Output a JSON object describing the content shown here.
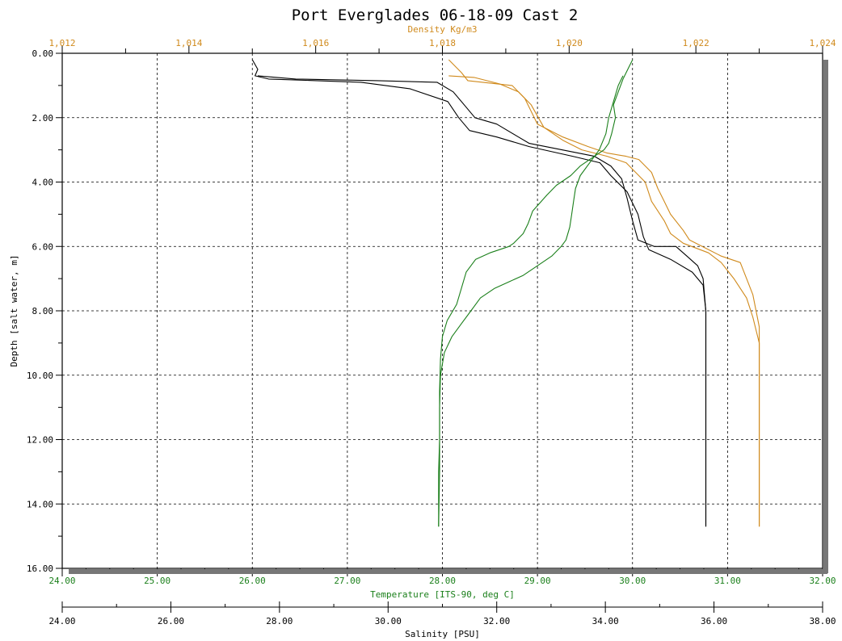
{
  "chart_data": {
    "type": "line",
    "title": "Port Everglades  06-18-09 Cast 2",
    "y_axis": {
      "label": "Depth [salt water, m]",
      "range": [
        0,
        16
      ],
      "inverted": true,
      "ticks": [
        "0.00",
        "2.00",
        "4.00",
        "6.00",
        "8.00",
        "10.00",
        "12.00",
        "14.00",
        "16.00"
      ]
    },
    "x_axes": [
      {
        "id": "density",
        "label": "Density Kg/m3",
        "position": "top",
        "color": "#d08a1c",
        "range": [
          1.012,
          1.024
        ],
        "ticks": [
          "1,012",
          "1,014",
          "1,016",
          "1,018",
          "1,020",
          "1,022",
          "1,024"
        ]
      },
      {
        "id": "temperature",
        "label": "Temperature [ITS-90, deg C]",
        "position": "bottom",
        "color": "#1a7f1a",
        "range": [
          24,
          32
        ],
        "ticks": [
          "24.00",
          "25.00",
          "26.00",
          "27.00",
          "28.00",
          "29.00",
          "30.00",
          "31.00",
          "32.00"
        ]
      },
      {
        "id": "salinity",
        "label": "Salinity [PSU]",
        "position": "bottom-outer",
        "color": "#000000",
        "range": [
          24,
          38
        ],
        "ticks": [
          "24.00",
          "26.00",
          "28.00",
          "30.00",
          "32.00",
          "34.00",
          "36.00",
          "38.00"
        ]
      }
    ],
    "grid": true,
    "series": [
      {
        "axis": "salinity",
        "color": "#000000",
        "points": [
          [
            27.5,
            0.2
          ],
          [
            27.6,
            0.5
          ],
          [
            27.55,
            0.7
          ],
          [
            27.8,
            0.8
          ],
          [
            29.5,
            0.9
          ],
          [
            30.4,
            1.1
          ],
          [
            31.1,
            1.5
          ],
          [
            31.3,
            2.0
          ],
          [
            31.5,
            2.4
          ],
          [
            32.0,
            2.6
          ],
          [
            32.2,
            2.7
          ],
          [
            32.6,
            2.9
          ],
          [
            33.4,
            3.2
          ],
          [
            33.9,
            3.4
          ],
          [
            34.1,
            3.8
          ],
          [
            34.4,
            4.3
          ],
          [
            34.6,
            5.0
          ],
          [
            34.7,
            5.7
          ],
          [
            34.8,
            6.1
          ],
          [
            35.2,
            6.4
          ],
          [
            35.6,
            6.8
          ],
          [
            35.8,
            7.2
          ],
          [
            35.85,
            8.0
          ],
          [
            35.85,
            9.0
          ],
          [
            35.85,
            10.0
          ],
          [
            35.85,
            12.0
          ],
          [
            35.85,
            14.0
          ],
          [
            35.85,
            14.7
          ]
        ]
      },
      {
        "axis": "salinity",
        "color": "#000000",
        "points": [
          [
            27.6,
            0.7
          ],
          [
            28.3,
            0.8
          ],
          [
            29.8,
            0.85
          ],
          [
            30.9,
            0.9
          ],
          [
            31.2,
            1.2
          ],
          [
            31.4,
            1.6
          ],
          [
            31.6,
            2.0
          ],
          [
            32.0,
            2.2
          ],
          [
            32.4,
            2.6
          ],
          [
            32.6,
            2.8
          ],
          [
            33.2,
            3.0
          ],
          [
            33.8,
            3.2
          ],
          [
            34.1,
            3.5
          ],
          [
            34.3,
            3.9
          ],
          [
            34.4,
            4.5
          ],
          [
            34.5,
            5.2
          ],
          [
            34.6,
            5.8
          ],
          [
            34.9,
            6.0
          ],
          [
            35.3,
            6.0
          ],
          [
            35.5,
            6.3
          ],
          [
            35.7,
            6.6
          ],
          [
            35.8,
            7.0
          ],
          [
            35.85,
            8.0
          ],
          [
            35.85,
            9.5
          ],
          [
            35.85,
            11.0
          ],
          [
            35.85,
            13.0
          ],
          [
            35.85,
            14.7
          ]
        ]
      },
      {
        "axis": "density",
        "color": "#d08a1c",
        "points": [
          [
            1.0181,
            0.2
          ],
          [
            1.0183,
            0.6
          ],
          [
            1.0184,
            0.85
          ],
          [
            1.0191,
            1.0
          ],
          [
            1.0193,
            1.4
          ],
          [
            1.0195,
            2.2
          ],
          [
            1.0199,
            2.6
          ],
          [
            1.0203,
            2.9
          ],
          [
            1.0206,
            3.1
          ],
          [
            1.0209,
            3.2
          ],
          [
            1.0211,
            3.3
          ],
          [
            1.0213,
            3.7
          ],
          [
            1.0214,
            4.2
          ],
          [
            1.0215,
            4.6
          ],
          [
            1.0216,
            5.0
          ],
          [
            1.0218,
            5.5
          ],
          [
            1.0219,
            5.8
          ],
          [
            1.0221,
            6.0
          ],
          [
            1.0224,
            6.3
          ],
          [
            1.0227,
            6.5
          ],
          [
            1.0228,
            7.0
          ],
          [
            1.0229,
            7.5
          ],
          [
            1.023,
            8.5
          ],
          [
            1.023,
            10.0
          ],
          [
            1.023,
            12.0
          ],
          [
            1.023,
            14.7
          ]
        ]
      },
      {
        "axis": "density",
        "color": "#d08a1c",
        "points": [
          [
            1.0181,
            0.7
          ],
          [
            1.0185,
            0.75
          ],
          [
            1.0189,
            0.95
          ],
          [
            1.0192,
            1.2
          ],
          [
            1.0194,
            1.6
          ],
          [
            1.0196,
            2.3
          ],
          [
            1.0199,
            2.7
          ],
          [
            1.0202,
            3.0
          ],
          [
            1.0206,
            3.2
          ],
          [
            1.0209,
            3.4
          ],
          [
            1.0212,
            4.0
          ],
          [
            1.0213,
            4.6
          ],
          [
            1.0215,
            5.2
          ],
          [
            1.0216,
            5.6
          ],
          [
            1.0218,
            5.9
          ],
          [
            1.0222,
            6.2
          ],
          [
            1.0224,
            6.5
          ],
          [
            1.0226,
            7.0
          ],
          [
            1.0228,
            7.6
          ],
          [
            1.0229,
            8.2
          ],
          [
            1.023,
            9.0
          ],
          [
            1.023,
            10.0
          ],
          [
            1.023,
            12.0
          ],
          [
            1.023,
            14.7
          ]
        ]
      },
      {
        "axis": "temperature",
        "color": "#1a7f1a",
        "points": [
          [
            30.0,
            0.2
          ],
          [
            29.95,
            0.5
          ],
          [
            29.9,
            0.8
          ],
          [
            29.85,
            1.2
          ],
          [
            29.8,
            1.6
          ],
          [
            29.82,
            2.0
          ],
          [
            29.78,
            2.5
          ],
          [
            29.75,
            2.8
          ],
          [
            29.7,
            3.0
          ],
          [
            29.55,
            3.3
          ],
          [
            29.45,
            3.5
          ],
          [
            29.35,
            3.8
          ],
          [
            29.2,
            4.1
          ],
          [
            29.1,
            4.4
          ],
          [
            28.95,
            4.9
          ],
          [
            28.9,
            5.3
          ],
          [
            28.85,
            5.6
          ],
          [
            28.75,
            5.9
          ],
          [
            28.7,
            6.0
          ],
          [
            28.5,
            6.2
          ],
          [
            28.35,
            6.4
          ],
          [
            28.25,
            6.8
          ],
          [
            28.2,
            7.3
          ],
          [
            28.15,
            7.8
          ],
          [
            28.05,
            8.3
          ],
          [
            28.0,
            8.8
          ],
          [
            27.98,
            9.5
          ],
          [
            27.97,
            10.5
          ],
          [
            27.97,
            12.0
          ],
          [
            27.96,
            13.0
          ],
          [
            27.96,
            14.7
          ]
        ]
      },
      {
        "axis": "temperature",
        "color": "#1a7f1a",
        "points": [
          [
            29.9,
            0.7
          ],
          [
            29.85,
            1.0
          ],
          [
            29.8,
            1.5
          ],
          [
            29.75,
            2.0
          ],
          [
            29.72,
            2.5
          ],
          [
            29.65,
            3.0
          ],
          [
            29.55,
            3.4
          ],
          [
            29.45,
            3.8
          ],
          [
            29.4,
            4.2
          ],
          [
            29.38,
            4.6
          ],
          [
            29.36,
            5.0
          ],
          [
            29.34,
            5.4
          ],
          [
            29.3,
            5.8
          ],
          [
            29.25,
            6.0
          ],
          [
            29.15,
            6.3
          ],
          [
            29.0,
            6.6
          ],
          [
            28.85,
            6.9
          ],
          [
            28.7,
            7.1
          ],
          [
            28.55,
            7.3
          ],
          [
            28.4,
            7.6
          ],
          [
            28.3,
            8.0
          ],
          [
            28.2,
            8.4
          ],
          [
            28.1,
            8.8
          ],
          [
            28.02,
            9.3
          ],
          [
            27.98,
            10.0
          ],
          [
            27.97,
            11.0
          ],
          [
            27.97,
            13.0
          ],
          [
            27.96,
            14.7
          ]
        ]
      }
    ]
  }
}
